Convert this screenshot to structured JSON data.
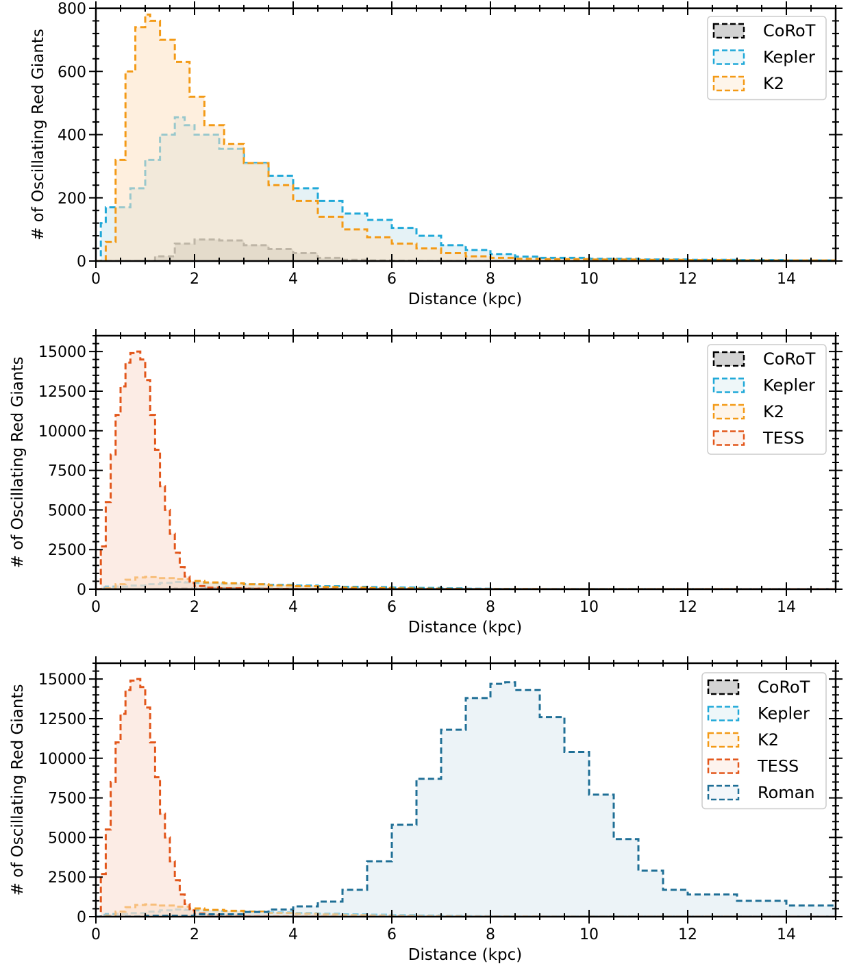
{
  "chart_data": [
    {
      "type": "area",
      "xlabel": "Distance (kpc)",
      "ylabel": "# of Oscillating Red Giants",
      "xlim": [
        0,
        15
      ],
      "ylim": [
        0,
        800
      ],
      "xticks": [
        "0",
        "2",
        "4",
        "6",
        "8",
        "10",
        "12",
        "14"
      ],
      "yticks": [
        "0",
        "200",
        "400",
        "600",
        "800"
      ],
      "legend_position": "upper right",
      "series": [
        {
          "name": "CoRoT",
          "color": "#000000",
          "fill": "#808080",
          "x": [
            0,
            0.8,
            1.2,
            1.6,
            2.0,
            2.5,
            3.0,
            3.5,
            4.0,
            4.5,
            5.0,
            5.5,
            6.0,
            6.5,
            15
          ],
          "values": [
            0,
            0,
            15,
            55,
            68,
            65,
            50,
            38,
            25,
            10,
            4,
            2,
            1,
            0,
            0
          ]
        },
        {
          "name": "Kepler",
          "color": "#1fa8d8",
          "fill": "#cfe8ee",
          "x": [
            0,
            0.1,
            0.2,
            0.4,
            0.7,
            1.0,
            1.3,
            1.6,
            1.8,
            2.0,
            2.5,
            3.0,
            3.5,
            4.0,
            4.5,
            5.0,
            5.5,
            6.0,
            6.5,
            7.0,
            7.5,
            8.0,
            8.5,
            9.0,
            10.0,
            11.0,
            12.0,
            13.0,
            14.0,
            15.0
          ],
          "values": [
            0,
            120,
            170,
            170,
            230,
            320,
            400,
            455,
            430,
            400,
            355,
            310,
            270,
            230,
            190,
            150,
            130,
            105,
            80,
            50,
            35,
            22,
            14,
            10,
            7,
            5,
            4,
            3,
            2,
            2
          ]
        },
        {
          "name": "K2",
          "color": "#f39a16",
          "fill": "#fde2c3",
          "x": [
            0,
            0.2,
            0.4,
            0.6,
            0.8,
            1.0,
            1.1,
            1.3,
            1.6,
            1.9,
            2.2,
            2.6,
            3.0,
            3.5,
            4.0,
            4.5,
            5.0,
            5.5,
            6.0,
            6.5,
            7.0,
            7.5,
            8.0,
            8.5,
            9.0,
            10.0,
            11.0,
            12.0,
            13.0,
            14.0,
            15.0
          ],
          "values": [
            0,
            60,
            320,
            600,
            740,
            780,
            760,
            700,
            630,
            520,
            430,
            370,
            310,
            240,
            190,
            140,
            100,
            75,
            55,
            40,
            25,
            15,
            10,
            7,
            6,
            5,
            4,
            3,
            2,
            2,
            1
          ]
        }
      ]
    },
    {
      "type": "area",
      "xlabel": "Distance (kpc)",
      "ylabel": "# of Oscillating Red Giants",
      "xlim": [
        0,
        15
      ],
      "ylim": [
        0,
        16000
      ],
      "xticks": [
        "0",
        "2",
        "4",
        "6",
        "8",
        "10",
        "12",
        "14"
      ],
      "yticks": [
        "0",
        "2500",
        "5000",
        "7500",
        "10000",
        "12500",
        "15000"
      ],
      "legend_position": "upper right",
      "series": [
        {
          "name": "CoRoT",
          "color": "#000000",
          "fill": "#808080",
          "x": [
            0,
            0.8,
            1.2,
            1.6,
            2.0,
            2.5,
            3.0,
            3.5,
            4.0,
            4.5,
            5.0,
            5.5,
            6.0,
            6.5,
            15
          ],
          "values": [
            0,
            0,
            15,
            55,
            68,
            65,
            50,
            38,
            25,
            10,
            4,
            2,
            1,
            0,
            0
          ]
        },
        {
          "name": "Kepler",
          "color": "#1fa8d8",
          "fill": "#cfe8ee",
          "x": [
            0,
            0.1,
            0.2,
            0.4,
            0.7,
            1.0,
            1.3,
            1.6,
            1.8,
            2.0,
            2.5,
            3.0,
            3.5,
            4.0,
            4.5,
            5.0,
            5.5,
            6.0,
            6.5,
            7.0,
            7.5,
            8.0,
            8.5,
            9.0,
            10.0,
            11.0,
            12.0,
            13.0,
            14.0,
            15.0
          ],
          "values": [
            0,
            120,
            170,
            170,
            230,
            320,
            400,
            455,
            430,
            400,
            355,
            310,
            270,
            230,
            190,
            150,
            130,
            105,
            80,
            50,
            35,
            22,
            14,
            10,
            7,
            5,
            4,
            3,
            2,
            2
          ]
        },
        {
          "name": "K2",
          "color": "#f39a16",
          "fill": "#fde2c3",
          "x": [
            0,
            0.2,
            0.4,
            0.6,
            0.8,
            1.0,
            1.1,
            1.3,
            1.6,
            1.9,
            2.2,
            2.6,
            3.0,
            3.5,
            4.0,
            4.5,
            5.0,
            5.5,
            6.0,
            6.5,
            7.0,
            7.5,
            8.0,
            8.5,
            9.0,
            10.0,
            11.0,
            12.0,
            13.0,
            14.0,
            15.0
          ],
          "values": [
            0,
            60,
            320,
            600,
            740,
            780,
            760,
            700,
            630,
            520,
            430,
            370,
            310,
            240,
            190,
            140,
            100,
            75,
            55,
            40,
            25,
            15,
            10,
            7,
            6,
            5,
            4,
            3,
            2,
            2,
            1
          ]
        },
        {
          "name": "TESS",
          "color": "#e2561a",
          "fill": "#f9dccf",
          "x": [
            0,
            0.1,
            0.2,
            0.3,
            0.4,
            0.5,
            0.6,
            0.7,
            0.8,
            0.9,
            1.0,
            1.1,
            1.2,
            1.3,
            1.4,
            1.5,
            1.6,
            1.7,
            1.8,
            1.9,
            2.0,
            2.2,
            2.5,
            3.0,
            3.5,
            4.0,
            5.0,
            6.0,
            8.0,
            10.0,
            15.0
          ],
          "values": [
            0,
            2700,
            5500,
            8500,
            11000,
            12800,
            14300,
            14900,
            15000,
            14500,
            13200,
            11000,
            8800,
            6500,
            5000,
            3500,
            2300,
            1400,
            800,
            400,
            200,
            100,
            60,
            30,
            20,
            10,
            5,
            3,
            1,
            0,
            0
          ]
        }
      ]
    },
    {
      "type": "area",
      "xlabel": "Distance (kpc)",
      "ylabel": "# of Oscillating Red Giants",
      "xlim": [
        0,
        15
      ],
      "ylim": [
        0,
        16000
      ],
      "xticks": [
        "0",
        "2",
        "4",
        "6",
        "8",
        "10",
        "12",
        "14"
      ],
      "yticks": [
        "0",
        "2500",
        "5000",
        "7500",
        "10000",
        "12500",
        "15000"
      ],
      "legend_position": "upper right",
      "series": [
        {
          "name": "CoRoT",
          "color": "#000000",
          "fill": "#808080",
          "x": [
            0,
            0.8,
            1.2,
            1.6,
            2.0,
            2.5,
            3.0,
            3.5,
            4.0,
            4.5,
            5.0,
            5.5,
            6.0,
            6.5,
            15
          ],
          "values": [
            0,
            0,
            15,
            55,
            68,
            65,
            50,
            38,
            25,
            10,
            4,
            2,
            1,
            0,
            0
          ]
        },
        {
          "name": "Kepler",
          "color": "#1fa8d8",
          "fill": "#cfe8ee",
          "x": [
            0,
            0.1,
            0.2,
            0.4,
            0.7,
            1.0,
            1.3,
            1.6,
            1.8,
            2.0,
            2.5,
            3.0,
            3.5,
            4.0,
            4.5,
            5.0,
            5.5,
            6.0,
            6.5,
            7.0,
            7.5,
            8.0,
            8.5,
            9.0,
            10.0,
            11.0,
            12.0,
            13.0,
            14.0,
            15.0
          ],
          "values": [
            0,
            120,
            170,
            170,
            230,
            320,
            400,
            455,
            430,
            400,
            355,
            310,
            270,
            230,
            190,
            150,
            130,
            105,
            80,
            50,
            35,
            22,
            14,
            10,
            7,
            5,
            4,
            3,
            2,
            2
          ]
        },
        {
          "name": "K2",
          "color": "#f39a16",
          "fill": "#fde2c3",
          "x": [
            0,
            0.2,
            0.4,
            0.6,
            0.8,
            1.0,
            1.1,
            1.3,
            1.6,
            1.9,
            2.2,
            2.6,
            3.0,
            3.5,
            4.0,
            4.5,
            5.0,
            5.5,
            6.0,
            6.5,
            7.0,
            7.5,
            8.0,
            8.5,
            9.0,
            10.0,
            11.0,
            12.0,
            13.0,
            14.0,
            15.0
          ],
          "values": [
            0,
            60,
            320,
            600,
            740,
            780,
            760,
            700,
            630,
            520,
            430,
            370,
            310,
            240,
            190,
            140,
            100,
            75,
            55,
            40,
            25,
            15,
            10,
            7,
            6,
            5,
            4,
            3,
            2,
            2,
            1
          ]
        },
        {
          "name": "TESS",
          "color": "#e2561a",
          "fill": "#f9dccf",
          "x": [
            0,
            0.1,
            0.2,
            0.3,
            0.4,
            0.5,
            0.6,
            0.7,
            0.8,
            0.9,
            1.0,
            1.1,
            1.2,
            1.3,
            1.4,
            1.5,
            1.6,
            1.7,
            1.8,
            1.9,
            2.0,
            2.2,
            2.5,
            3.0,
            3.5,
            4.0,
            5.0,
            6.0,
            8.0,
            10.0,
            15.0
          ],
          "values": [
            0,
            2700,
            5500,
            8500,
            11000,
            12800,
            14300,
            14900,
            15000,
            14500,
            13200,
            11000,
            8800,
            6500,
            5000,
            3500,
            2300,
            1400,
            800,
            400,
            200,
            100,
            60,
            30,
            20,
            10,
            5,
            3,
            1,
            0,
            0
          ]
        },
        {
          "name": "Roman",
          "color": "#1f6f96",
          "fill": "#dde9f1",
          "x": [
            0,
            1.0,
            2.0,
            3.0,
            3.5,
            4.0,
            4.5,
            5.0,
            5.5,
            6.0,
            6.5,
            7.0,
            7.5,
            8.0,
            8.3,
            8.5,
            9.0,
            9.5,
            10.0,
            10.5,
            11.0,
            11.5,
            12.0,
            13.0,
            14.0,
            15.0
          ],
          "values": [
            0,
            50,
            150,
            300,
            450,
            650,
            950,
            1700,
            3500,
            5800,
            8700,
            11800,
            13800,
            14700,
            14800,
            14300,
            12600,
            10400,
            7700,
            4900,
            2900,
            1700,
            1400,
            1000,
            700,
            450
          ]
        }
      ]
    }
  ]
}
